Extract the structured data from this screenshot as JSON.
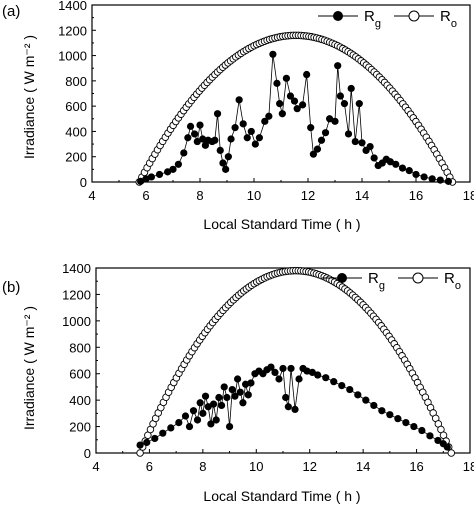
{
  "chart_data": [
    {
      "panel_label": "(a)",
      "type": "scatter",
      "xlabel": "Local Standard Time ( h )",
      "ylabel": "Irradiance ( W m⁻² )",
      "xlim": [
        4,
        18
      ],
      "ylim": [
        0,
        1400
      ],
      "xticks": [
        4,
        6,
        8,
        10,
        12,
        14,
        16,
        18
      ],
      "yticks": [
        0,
        200,
        400,
        600,
        800,
        1000,
        1200,
        1400
      ],
      "legend_position": "top-right",
      "series": [
        {
          "name": "Rg",
          "marker": "filled-circle",
          "connected": true,
          "points": [
            [
              5.8,
              5
            ],
            [
              6.0,
              25
            ],
            [
              6.2,
              40
            ],
            [
              6.5,
              60
            ],
            [
              6.8,
              80
            ],
            [
              7.0,
              100
            ],
            [
              7.2,
              140
            ],
            [
              7.4,
              230
            ],
            [
              7.55,
              350
            ],
            [
              7.65,
              440
            ],
            [
              7.8,
              380
            ],
            [
              7.9,
              320
            ],
            [
              8.0,
              450
            ],
            [
              8.1,
              340
            ],
            [
              8.2,
              290
            ],
            [
              8.3,
              330
            ],
            [
              8.45,
              320
            ],
            [
              8.55,
              330
            ],
            [
              8.65,
              540
            ],
            [
              8.75,
              250
            ],
            [
              8.85,
              150
            ],
            [
              8.95,
              100
            ],
            [
              9.05,
              200
            ],
            [
              9.15,
              340
            ],
            [
              9.3,
              430
            ],
            [
              9.45,
              650
            ],
            [
              9.6,
              460
            ],
            [
              9.75,
              350
            ],
            [
              9.9,
              400
            ],
            [
              10.05,
              300
            ],
            [
              10.2,
              350
            ],
            [
              10.4,
              480
            ],
            [
              10.55,
              520
            ],
            [
              10.7,
              1010
            ],
            [
              10.85,
              780
            ],
            [
              10.95,
              620
            ],
            [
              11.05,
              540
            ],
            [
              11.2,
              820
            ],
            [
              11.35,
              680
            ],
            [
              11.5,
              640
            ],
            [
              11.6,
              580
            ],
            [
              11.8,
              610
            ],
            [
              11.95,
              850
            ],
            [
              12.1,
              430
            ],
            [
              12.2,
              220
            ],
            [
              12.35,
              260
            ],
            [
              12.5,
              330
            ],
            [
              12.65,
              390
            ],
            [
              12.8,
              500
            ],
            [
              13.0,
              480
            ],
            [
              13.1,
              920
            ],
            [
              13.2,
              680
            ],
            [
              13.35,
              620
            ],
            [
              13.5,
              380
            ],
            [
              13.6,
              740
            ],
            [
              13.75,
              320
            ],
            [
              13.9,
              620
            ],
            [
              14.0,
              310
            ],
            [
              14.15,
              250
            ],
            [
              14.3,
              280
            ],
            [
              14.45,
              190
            ],
            [
              14.6,
              130
            ],
            [
              14.75,
              150
            ],
            [
              14.9,
              180
            ],
            [
              15.05,
              160
            ],
            [
              15.25,
              140
            ],
            [
              15.5,
              110
            ],
            [
              15.75,
              90
            ],
            [
              16.0,
              60
            ],
            [
              16.3,
              40
            ],
            [
              16.6,
              25
            ],
            [
              16.9,
              15
            ],
            [
              17.2,
              5
            ]
          ]
        },
        {
          "name": "Ro",
          "marker": "open-circle",
          "connected": false,
          "curve": "parabolic",
          "x_start": 5.75,
          "x_end": 17.35,
          "peak": 1160
        }
      ]
    },
    {
      "panel_label": "(b)",
      "type": "scatter",
      "xlabel": "Local Standard Time ( h )",
      "ylabel": "Irradiance ( W m⁻² )",
      "xlim": [
        4,
        18
      ],
      "ylim": [
        0,
        1400
      ],
      "xticks": [
        4,
        6,
        8,
        10,
        12,
        14,
        16,
        18
      ],
      "yticks": [
        0,
        200,
        400,
        600,
        800,
        1000,
        1200,
        1400
      ],
      "legend_position": "top-right",
      "series": [
        {
          "name": "Rg",
          "marker": "filled-circle",
          "connected": true,
          "points": [
            [
              5.65,
              60
            ],
            [
              5.9,
              80
            ],
            [
              6.2,
              110
            ],
            [
              6.5,
              150
            ],
            [
              6.8,
              190
            ],
            [
              7.1,
              230
            ],
            [
              7.35,
              280
            ],
            [
              7.5,
              200
            ],
            [
              7.65,
              320
            ],
            [
              7.8,
              250
            ],
            [
              7.9,
              380
            ],
            [
              8.0,
              300
            ],
            [
              8.1,
              430
            ],
            [
              8.2,
              350
            ],
            [
              8.3,
              220
            ],
            [
              8.4,
              370
            ],
            [
              8.5,
              250
            ],
            [
              8.6,
              420
            ],
            [
              8.7,
              360
            ],
            [
              8.8,
              500
            ],
            [
              8.9,
              420
            ],
            [
              9.0,
              200
            ],
            [
              9.1,
              480
            ],
            [
              9.2,
              430
            ],
            [
              9.3,
              560
            ],
            [
              9.4,
              460
            ],
            [
              9.5,
              380
            ],
            [
              9.6,
              520
            ],
            [
              9.7,
              440
            ],
            [
              9.8,
              530
            ],
            [
              9.95,
              600
            ],
            [
              10.1,
              620
            ],
            [
              10.25,
              600
            ],
            [
              10.4,
              630
            ],
            [
              10.55,
              650
            ],
            [
              10.7,
              610
            ],
            [
              10.85,
              560
            ],
            [
              11.0,
              640
            ],
            [
              11.1,
              420
            ],
            [
              11.2,
              350
            ],
            [
              11.3,
              640
            ],
            [
              11.45,
              330
            ],
            [
              11.6,
              560
            ],
            [
              11.75,
              640
            ],
            [
              11.9,
              620
            ],
            [
              12.1,
              610
            ],
            [
              12.3,
              590
            ],
            [
              12.6,
              570
            ],
            [
              12.9,
              540
            ],
            [
              13.2,
              510
            ],
            [
              13.5,
              480
            ],
            [
              13.8,
              440
            ],
            [
              14.1,
              400
            ],
            [
              14.4,
              360
            ],
            [
              14.7,
              320
            ],
            [
              15.0,
              290
            ],
            [
              15.3,
              260
            ],
            [
              15.6,
              230
            ],
            [
              15.9,
              200
            ],
            [
              16.2,
              170
            ],
            [
              16.5,
              130
            ],
            [
              16.8,
              95
            ],
            [
              17.0,
              70
            ],
            [
              17.15,
              45
            ]
          ]
        },
        {
          "name": "Ro",
          "marker": "open-circle",
          "connected": false,
          "curve": "parabolic",
          "x_start": 5.65,
          "x_end": 17.3,
          "peak": 1380
        }
      ]
    }
  ],
  "colors": {
    "marker_fill": "#000000",
    "marker_open_fill": "#ffffff",
    "axis": "#000000"
  }
}
